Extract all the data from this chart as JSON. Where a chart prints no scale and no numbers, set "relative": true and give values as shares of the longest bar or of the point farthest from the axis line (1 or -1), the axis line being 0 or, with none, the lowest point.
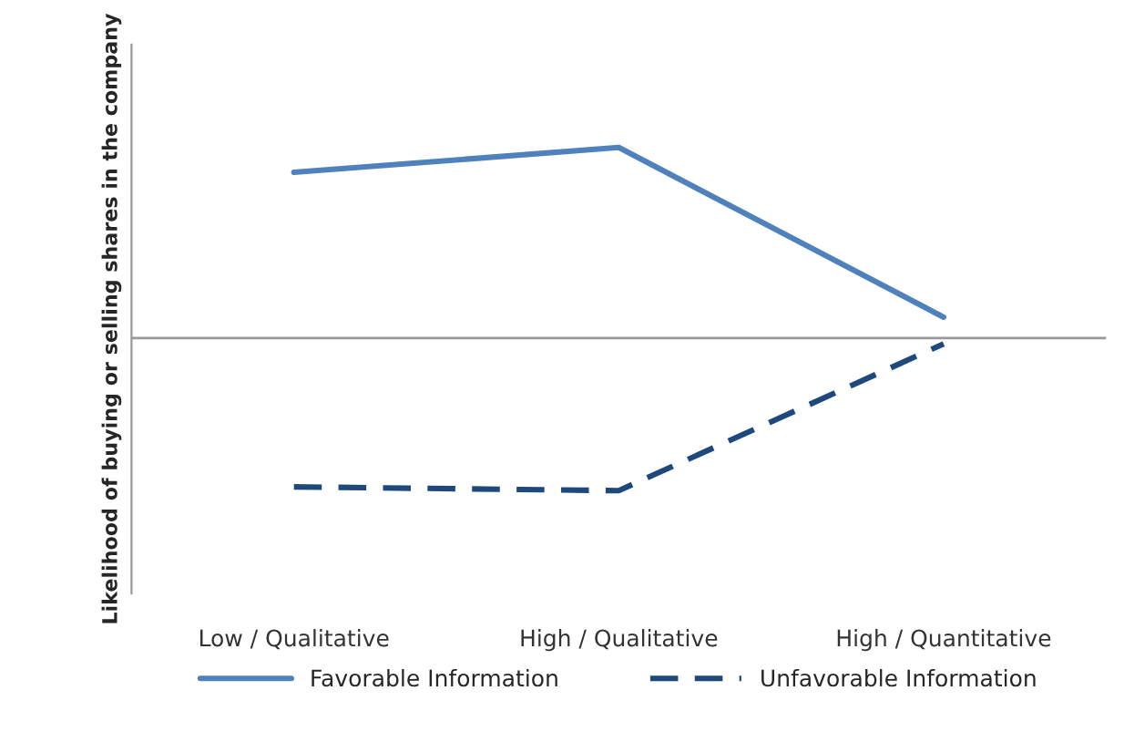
{
  "chart_data": {
    "type": "line",
    "relative": true,
    "ylabel": "Likelihood of buying or selling shares in the company",
    "categories": [
      "Low / Qualitative",
      "High / Qualitative",
      "High / Quantitative"
    ],
    "series": [
      {
        "name": "Favorable Information",
        "color": "#4f81bd",
        "values": [
          0.87,
          1,
          0.11
        ],
        "line_style": "solid"
      },
      {
        "name": "Unfavorable Information",
        "color": "#1f497d",
        "values": [
          -0.78,
          -0.8,
          -0.03
        ],
        "line_style": "dashed"
      }
    ],
    "legend": "bottom",
    "grid": false,
    "marker": "none"
  }
}
